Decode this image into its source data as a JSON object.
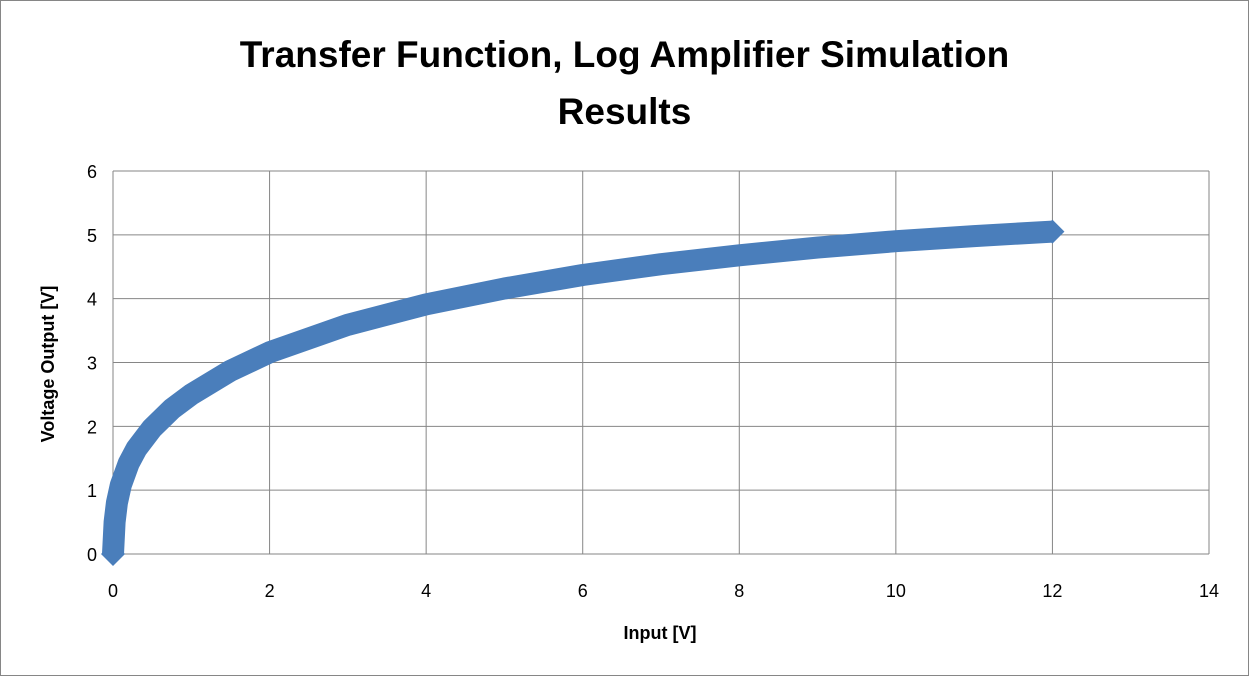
{
  "chart_data": {
    "type": "line",
    "title_line1": "Transfer Function, Log Amplifier Simulation",
    "title_line2": "Results",
    "xlabel": "Input [V]",
    "ylabel": "Voltage Output [V]",
    "xlim": [
      0,
      14
    ],
    "ylim": [
      0,
      6
    ],
    "xticks": [
      0,
      2,
      4,
      6,
      8,
      10,
      12,
      14
    ],
    "yticks": [
      0,
      1,
      2,
      3,
      4,
      5,
      6
    ],
    "grid": true,
    "legend": "none",
    "series": [
      {
        "color": "#4a7ebb",
        "x": [
          0,
          0.02,
          0.05,
          0.1,
          0.2,
          0.3,
          0.5,
          0.75,
          1,
          1.5,
          2,
          3,
          4,
          5,
          6,
          7,
          8,
          9,
          10,
          11,
          12
        ],
        "y": [
          0,
          0.5,
          0.8,
          1.08,
          1.42,
          1.65,
          1.97,
          2.27,
          2.5,
          2.87,
          3.16,
          3.59,
          3.91,
          4.16,
          4.37,
          4.54,
          4.68,
          4.8,
          4.9,
          4.98,
          5.05
        ]
      }
    ]
  }
}
